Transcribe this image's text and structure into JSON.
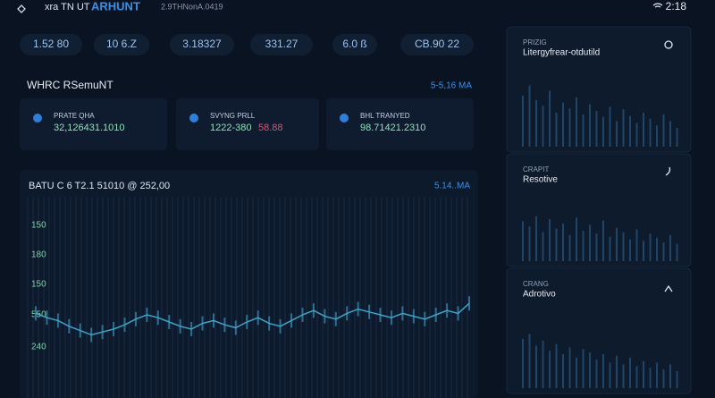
{
  "header": {
    "brand": "xra TN UT",
    "brand_strong": "ARHUNT",
    "meta": "2.9THNonA.0419",
    "time": "2:18"
  },
  "stats": [
    "1.52 80",
    "10 6.Z",
    "3.18327",
    "331.27",
    "6.0 ß",
    "CB.90 22"
  ],
  "section": {
    "title": "WHRC RSemuNT",
    "aside": "5-5,16 MA"
  },
  "cards": [
    {
      "label": "PRATE QHA",
      "value": "32,126431.1010"
    },
    {
      "label": "SVYNG PRLL",
      "value": "1222-380",
      "delta": "58.88"
    },
    {
      "label": "BHL TRANYED",
      "value": "98.71421.2310"
    }
  ],
  "chart": {
    "title": "BATU C 6 T2.1 51010 @ 252,00",
    "aside": "5.14..MA",
    "axis_labels": [
      "150",
      "180",
      "150",
      "550",
      "240"
    ],
    "values": [
      31,
      28,
      26,
      22,
      19,
      16,
      18,
      20,
      23,
      27,
      30,
      28,
      25,
      22,
      20,
      24,
      26,
      23,
      21,
      25,
      28,
      24,
      22,
      26,
      30,
      33,
      29,
      27,
      31,
      34,
      32,
      30,
      28,
      31,
      29,
      27,
      30,
      33,
      31,
      38
    ]
  },
  "panels": [
    {
      "label": "PRIZIG",
      "title": "Litergyfrear-otdutild",
      "values": [
        60,
        72,
        55,
        48,
        66,
        40,
        52,
        45,
        58,
        38,
        50,
        42,
        35,
        47,
        30,
        44,
        36,
        28,
        40,
        33,
        25,
        38,
        30,
        22
      ]
    },
    {
      "label": "CRAPIT",
      "title": "Resotive",
      "values": [
        55,
        48,
        62,
        40,
        58,
        45,
        52,
        36,
        60,
        42,
        50,
        38,
        56,
        34,
        46,
        40,
        30,
        44,
        28,
        38,
        32,
        26,
        36,
        24
      ]
    },
    {
      "label": "CRANG",
      "title": "Adrotivo",
      "values": [
        58,
        64,
        50,
        56,
        44,
        52,
        40,
        48,
        36,
        46,
        42,
        34,
        40,
        30,
        38,
        28,
        36,
        26,
        32,
        24,
        30,
        22,
        28,
        20
      ]
    }
  ]
}
